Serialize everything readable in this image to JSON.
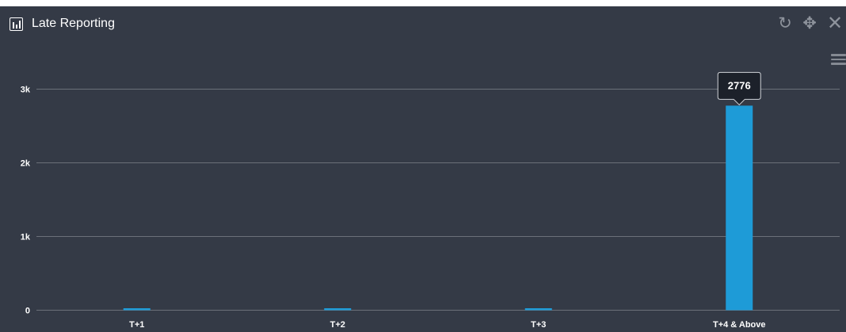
{
  "widget": {
    "title": "Late Reporting",
    "title_icon": "bar-chart-icon",
    "tools": [
      {
        "name": "refresh-icon",
        "glyph": "↻"
      },
      {
        "name": "move-icon",
        "glyph": "✥"
      },
      {
        "name": "close-icon",
        "glyph": "✕"
      }
    ],
    "menu_icon": "hamburger-menu-icon"
  },
  "chart_data": {
    "type": "bar",
    "title": "",
    "xlabel": "",
    "ylabel": "",
    "categories": [
      "T+1",
      "T+2",
      "T+3",
      "T+4 & Above"
    ],
    "values": [
      8,
      10,
      9,
      2776
    ],
    "ylim": [
      0,
      3000
    ],
    "yticks": [
      {
        "value": 0,
        "label": "0"
      },
      {
        "value": 1000,
        "label": "1k"
      },
      {
        "value": 2000,
        "label": "2k"
      },
      {
        "value": 3000,
        "label": "3k"
      }
    ],
    "grid": true,
    "legend": "none",
    "tooltip": {
      "category": "T+4 & Above",
      "label": "2776"
    },
    "colors": {
      "bar": "#1e9bd7",
      "background": "#343a46",
      "grid": "#6b7079",
      "axis_text": "#ffffff",
      "tooltip_bg": "#1c212a",
      "tooltip_border": "#d0d3d8"
    }
  }
}
